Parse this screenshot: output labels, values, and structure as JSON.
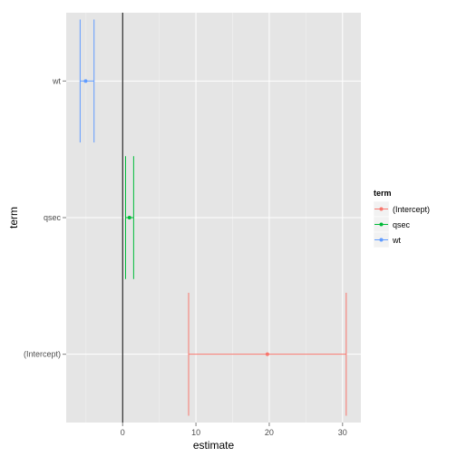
{
  "chart_data": {
    "type": "scatter",
    "subtype": "coefficient-plot-with-horizontal-error-bars",
    "xlabel": "estimate",
    "ylabel": "term",
    "xlim": [
      -7.7,
      32.5
    ],
    "x_ticks": [
      0,
      10,
      20,
      30
    ],
    "x_tick_labels": [
      "0",
      "10",
      "20",
      "30"
    ],
    "categories": [
      "(Intercept)",
      "qsec",
      "wt"
    ],
    "reference_line_x": 0,
    "grid": true,
    "panel_background": "#e5e5e5",
    "grid_color": "#ffffff",
    "legend": {
      "title": "term",
      "placement": "right"
    },
    "series": [
      {
        "name": "(Intercept)",
        "estimate": 19.75,
        "conf_low": 9.0,
        "conf_high": 30.5,
        "color": "#f8766d"
      },
      {
        "name": "qsec",
        "estimate": 0.93,
        "conf_low": 0.4,
        "conf_high": 1.5,
        "color": "#00ba38"
      },
      {
        "name": "wt",
        "estimate": -5.05,
        "conf_low": -5.8,
        "conf_high": -3.9,
        "color": "#619cff"
      }
    ]
  }
}
